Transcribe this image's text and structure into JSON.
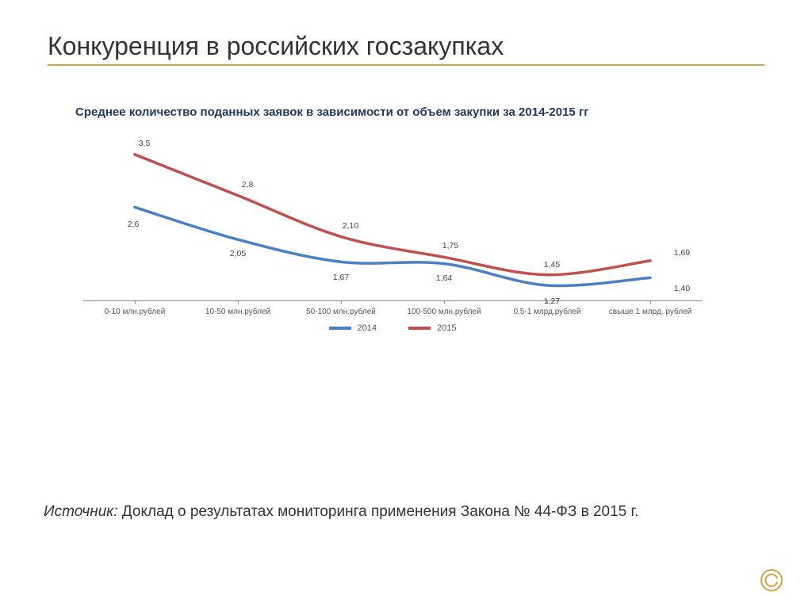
{
  "slide": {
    "title": "Конкуренция в российских госзакупках",
    "underline_color": "#d4a445"
  },
  "chart": {
    "type": "line",
    "title": "Среднее количество поданных заявок в зависимости от объем закупки за 2014-2015 гг",
    "title_color": "#1f3864",
    "title_fontsize": 15,
    "background_color": "#ffffff",
    "categories": [
      "0-10 млн.рублей",
      "10-50 млн.рублей",
      "50-100 млн.рублей",
      "100-500 млн.рублей",
      "0,5-1 млрд.рублей",
      "свыше 1 млрд. рублей"
    ],
    "ylim": [
      1.0,
      3.7
    ],
    "series": [
      {
        "name": "2014",
        "color": "#4a7fc4",
        "line_width": 3.5,
        "values": [
          2.6,
          2.05,
          1.67,
          1.64,
          1.27,
          1.4
        ],
        "label_offsets": [
          [
            -2,
            22
          ],
          [
            0,
            18
          ],
          [
            0,
            20
          ],
          [
            0,
            18
          ],
          [
            6,
            20
          ],
          [
            40,
            14
          ]
        ]
      },
      {
        "name": "2015",
        "color": "#c0504d",
        "line_width": 3.5,
        "values": [
          3.5,
          2.8,
          2.1,
          1.75,
          1.45,
          1.69
        ],
        "label_offsets": [
          [
            12,
            -14
          ],
          [
            12,
            -14
          ],
          [
            12,
            -14
          ],
          [
            8,
            -14
          ],
          [
            6,
            -13
          ],
          [
            40,
            -10
          ]
        ]
      }
    ],
    "x_label_fontsize": 10,
    "data_label_fontsize": 10.5,
    "axis_color": "#888888"
  },
  "source": {
    "label": "Источник:",
    "text": " Доклад о результатах мониторинга применения Закона № 44-ФЗ в 2015 г."
  },
  "logo": {
    "outer_color": "#d4a445",
    "inner_color": "#d4a445"
  }
}
